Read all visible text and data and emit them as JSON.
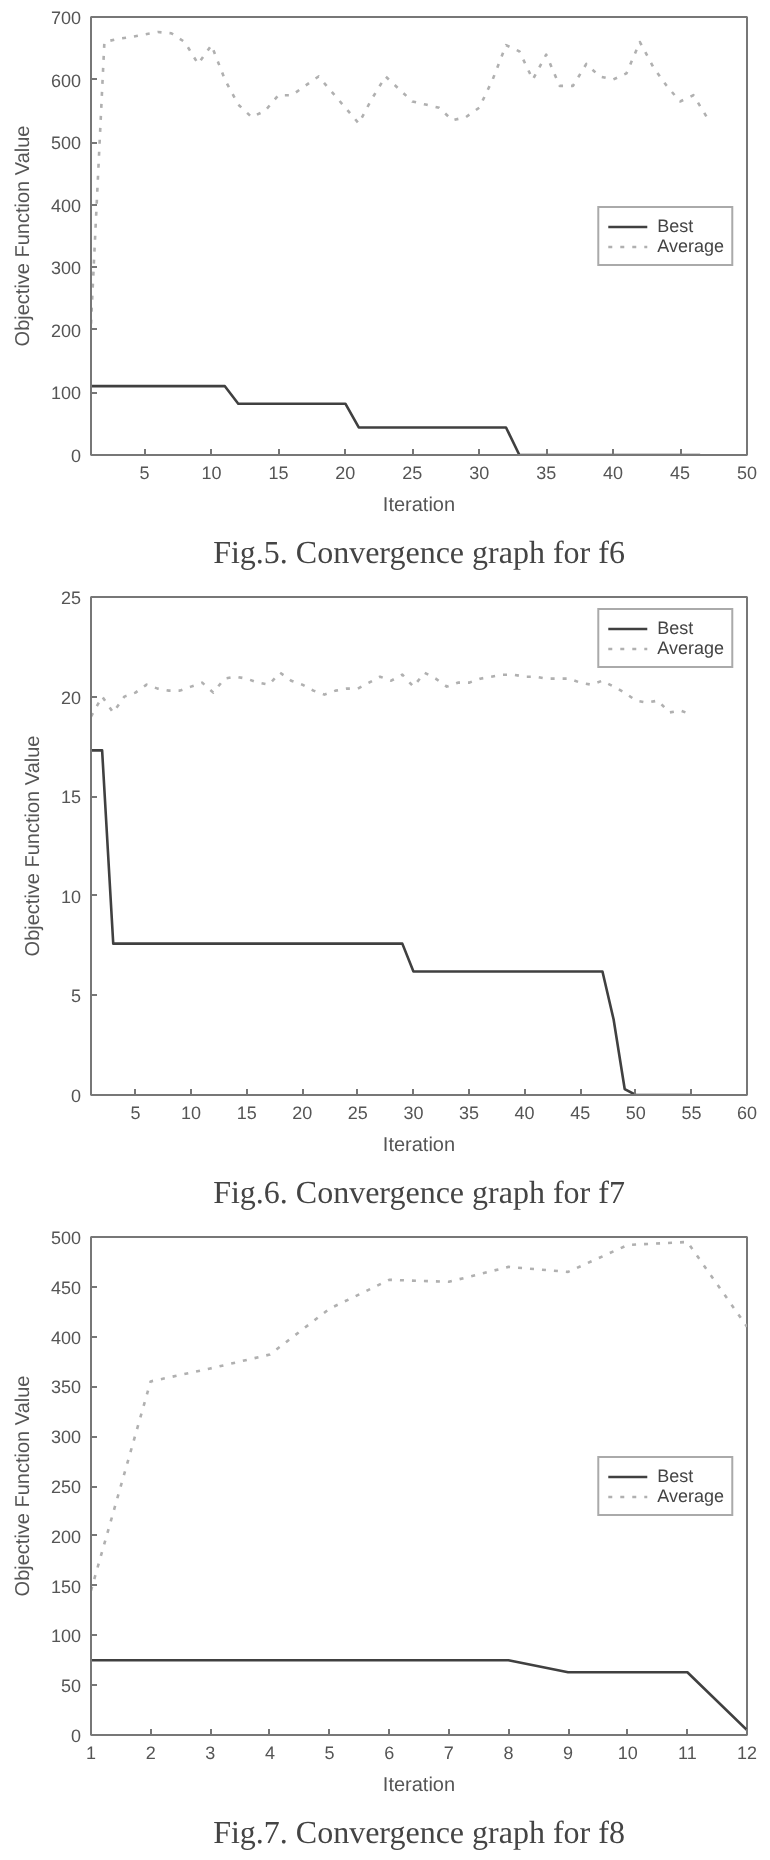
{
  "chart_data": [
    {
      "type": "line",
      "title": "Fig.5. Convergence graph for f6",
      "xlabel": "Iteration",
      "ylabel": "Objective Function Value",
      "xlim": [
        1,
        50
      ],
      "xticks": [
        5,
        10,
        15,
        20,
        25,
        30,
        35,
        40,
        45,
        50
      ],
      "ylim": [
        0,
        700
      ],
      "yticks": [
        0,
        100,
        200,
        300,
        400,
        500,
        600,
        700
      ],
      "grid": false,
      "legend": "right",
      "series": [
        {
          "name": "Best",
          "color": "#404040",
          "line_style": "solid",
          "x": [
            1,
            11,
            12,
            20,
            21,
            32,
            33,
            46.5
          ],
          "values": [
            110,
            110,
            82,
            82,
            44,
            44,
            0,
            0
          ]
        },
        {
          "name": "Average",
          "color": "#b0b0b0",
          "line_style": "dotted",
          "x": [
            1,
            2,
            3,
            4,
            5,
            6,
            7,
            8,
            9,
            10,
            11,
            12,
            13,
            14,
            15,
            16,
            17,
            18,
            19,
            20,
            21,
            22,
            23,
            24,
            25,
            26,
            27,
            28,
            29,
            30,
            31,
            32,
            33,
            34,
            35,
            36,
            37,
            38,
            39,
            40,
            41,
            42,
            43,
            44,
            45,
            46,
            47
          ],
          "values": [
            210,
            660,
            665,
            668,
            672,
            676,
            674,
            660,
            625,
            655,
            600,
            560,
            540,
            550,
            575,
            575,
            590,
            605,
            580,
            555,
            530,
            570,
            605,
            585,
            565,
            560,
            555,
            535,
            540,
            555,
            600,
            655,
            645,
            600,
            640,
            590,
            590,
            625,
            605,
            600,
            610,
            660,
            620,
            590,
            565,
            575,
            540
          ]
        }
      ]
    },
    {
      "type": "line",
      "title": "Fig.6. Convergence graph for f7",
      "xlabel": "Iteration",
      "ylabel": "Objective Function Value",
      "xlim": [
        1,
        60
      ],
      "xticks": [
        5,
        10,
        15,
        20,
        25,
        30,
        35,
        40,
        45,
        50,
        55,
        60
      ],
      "ylim": [
        0,
        25
      ],
      "yticks": [
        0,
        5,
        10,
        15,
        20,
        25
      ],
      "grid": false,
      "legend": "top right",
      "series": [
        {
          "name": "Best",
          "color": "#404040",
          "line_style": "solid",
          "x": [
            1,
            2,
            3,
            29,
            30,
            47,
            48,
            49,
            50,
            55
          ],
          "values": [
            17.3,
            17.3,
            7.6,
            7.6,
            6.2,
            6.2,
            3.8,
            0.3,
            0,
            0
          ]
        },
        {
          "name": "Average",
          "color": "#b0b0b0",
          "line_style": "dotted",
          "x": [
            1,
            2,
            3,
            4,
            5,
            6,
            7,
            8,
            9,
            10,
            11,
            12,
            13,
            14,
            15,
            16,
            17,
            18,
            19,
            20,
            21,
            22,
            23,
            24,
            25,
            26,
            27,
            28,
            29,
            30,
            31,
            32,
            33,
            34,
            35,
            36,
            37,
            38,
            39,
            40,
            41,
            42,
            43,
            44,
            45,
            46,
            47,
            48,
            49,
            50,
            51,
            52,
            53,
            54,
            55
          ],
          "values": [
            19,
            20,
            19.2,
            20,
            20.2,
            20.6,
            20.4,
            20.3,
            20.3,
            20.5,
            20.7,
            20.2,
            20.9,
            21,
            20.9,
            20.7,
            20.6,
            21.2,
            20.8,
            20.6,
            20.3,
            20.1,
            20.3,
            20.4,
            20.4,
            20.7,
            21,
            20.8,
            21.1,
            20.5,
            21.2,
            20.9,
            20.5,
            20.7,
            20.7,
            20.9,
            21,
            21.1,
            21.1,
            21,
            21,
            20.9,
            20.9,
            20.9,
            20.7,
            20.6,
            20.8,
            20.5,
            20.2,
            19.8,
            19.7,
            19.8,
            19.2,
            19.3,
            19.1
          ]
        }
      ]
    },
    {
      "type": "line",
      "title": "Fig.7. Convergence graph for f8",
      "xlabel": "Iteration",
      "ylabel": "Objective Function Value",
      "xlim": [
        1,
        12
      ],
      "xticks": [
        1,
        2,
        3,
        4,
        5,
        6,
        7,
        8,
        9,
        10,
        11,
        12
      ],
      "ylim": [
        0,
        500
      ],
      "yticks": [
        0,
        50,
        100,
        150,
        200,
        250,
        300,
        350,
        400,
        450,
        500
      ],
      "grid": false,
      "legend": "right",
      "series": [
        {
          "name": "Best",
          "color": "#404040",
          "line_style": "solid",
          "x": [
            1,
            2,
            3,
            4,
            5,
            6,
            7,
            8,
            9,
            10,
            11,
            12
          ],
          "values": [
            75,
            75,
            75,
            75,
            75,
            75,
            75,
            75,
            63,
            63,
            63,
            5
          ]
        },
        {
          "name": "Average",
          "color": "#b0b0b0",
          "line_style": "dotted",
          "x": [
            1,
            2,
            3,
            4,
            5,
            6,
            7,
            8,
            9,
            10,
            11,
            12
          ],
          "values": [
            145,
            355,
            368,
            382,
            428,
            457,
            455,
            470,
            465,
            492,
            495,
            410
          ]
        }
      ]
    }
  ]
}
